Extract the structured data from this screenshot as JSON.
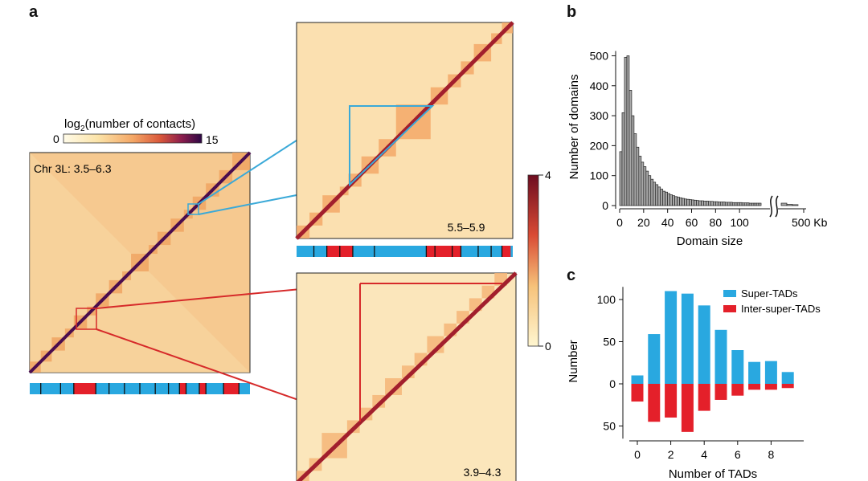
{
  "panels": {
    "a": "a",
    "b": "b",
    "c": "c"
  },
  "panel_a": {
    "colorbar_title_prefix": "log",
    "colorbar_title_sub": "2",
    "colorbar_title_suffix": "(number of contacts)",
    "colorbar_min": "0",
    "colorbar_max": "15",
    "main_map_label": "Chr 3L: 3.5–6.3",
    "zoom_top_label": "5.5–5.9",
    "zoom_bottom_label": "3.9–4.3",
    "ratio_bar_max": "4",
    "ratio_bar_min": "0",
    "colors": {
      "blue_track": "#29a8e0",
      "red_track": "#e4202a",
      "zoom_top_frame": "#3aa9d8",
      "zoom_bottom_frame": "#d62a2a",
      "contact_low": "#fdf1c8",
      "contact_high": "#3a0a4a"
    }
  },
  "chart_data": [
    {
      "type": "bar",
      "panel": "b",
      "xlabel": "Domain size",
      "ylabel": "Number of domains",
      "x_unit": "Kb",
      "x_ticks": [
        "0",
        "20",
        "40",
        "60",
        "80",
        "100",
        "500 Kb"
      ],
      "y_ticks": [
        "0",
        "100",
        "200",
        "300",
        "400",
        "500"
      ],
      "ylim": [
        0,
        520
      ],
      "xlim": [
        0,
        120
      ],
      "bin_width": 2,
      "bin_starts": [
        0,
        2,
        4,
        6,
        8,
        10,
        12,
        14,
        16,
        18,
        20,
        22,
        24,
        26,
        28,
        30,
        32,
        34,
        36,
        38,
        40,
        42,
        44,
        46,
        48,
        50,
        52,
        54,
        56,
        58,
        60,
        62,
        64,
        66,
        68,
        70,
        72,
        74,
        76,
        78,
        80,
        82,
        84,
        86,
        88,
        90,
        92,
        94,
        96,
        98,
        100,
        102,
        104,
        106,
        108,
        110,
        112,
        114,
        116
      ],
      "values": [
        180,
        310,
        495,
        500,
        385,
        300,
        240,
        195,
        165,
        145,
        130,
        115,
        100,
        88,
        78,
        70,
        62,
        55,
        48,
        45,
        40,
        36,
        33,
        30,
        28,
        26,
        24,
        22,
        21,
        20,
        19,
        18,
        17,
        16,
        16,
        15,
        15,
        14,
        14,
        13,
        13,
        12,
        12,
        12,
        11,
        11,
        11,
        10,
        10,
        10,
        10,
        9,
        9,
        9,
        8,
        8,
        8,
        8,
        8
      ],
      "tail_values": [
        8,
        4,
        3
      ],
      "grid": false
    },
    {
      "type": "bar",
      "panel": "c",
      "xlabel": "Number of TADs",
      "ylabel": "Number",
      "categories": [
        0,
        1,
        2,
        3,
        4,
        5,
        6,
        7,
        8,
        9
      ],
      "x_ticks": [
        "0",
        "2",
        "4",
        "6",
        "8"
      ],
      "y_ticks_up": [
        "0",
        "50",
        "100"
      ],
      "y_ticks_down": [
        "50"
      ],
      "ylim": [
        -65,
        115
      ],
      "legend_position": "top-right",
      "series": [
        {
          "name": "Super-TADs",
          "color": "#29a8e0",
          "values": [
            10,
            59,
            110,
            107,
            93,
            64,
            40,
            26,
            27,
            14
          ]
        },
        {
          "name": "Inter-super-TADs",
          "color": "#e4202a",
          "values": [
            -21,
            -45,
            -40,
            -57,
            -32,
            -19,
            -14,
            -7,
            -7,
            -5
          ]
        }
      ],
      "grid": false
    }
  ]
}
